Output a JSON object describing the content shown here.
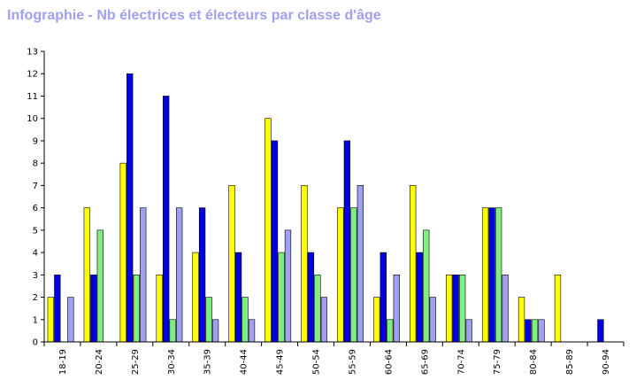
{
  "title": "Infographie - Nb électrices et électeurs par classe d'âge",
  "colors": {
    "title": "#a0a0f0",
    "axis": "#000000",
    "bar_outline": "#000000",
    "series": [
      "#ffff00",
      "#0000e0",
      "#80ee80",
      "#a0a0f0"
    ]
  },
  "chart_data": {
    "type": "bar",
    "title": "Infographie - Nb électrices et électeurs par classe d'âge",
    "xlabel": "",
    "ylabel": "",
    "ylim": [
      0,
      13
    ],
    "yticks": [
      0,
      1,
      2,
      3,
      4,
      5,
      6,
      7,
      8,
      9,
      10,
      11,
      12,
      13
    ],
    "grid": false,
    "legend": "none",
    "categories": [
      "18-19",
      "20-24",
      "25-29",
      "30-34",
      "35-39",
      "40-44",
      "45-49",
      "50-54",
      "55-59",
      "60-64",
      "65-69",
      "70-74",
      "75-79",
      "80-84",
      "85-89",
      "90-94"
    ],
    "series": [
      {
        "values": [
          2,
          6,
          8,
          3,
          4,
          7,
          10,
          7,
          6,
          2,
          7,
          3,
          6,
          2,
          3,
          0
        ]
      },
      {
        "values": [
          3,
          3,
          12,
          11,
          6,
          4,
          9,
          4,
          9,
          4,
          4,
          3,
          6,
          1,
          0,
          1
        ]
      },
      {
        "values": [
          0,
          5,
          3,
          1,
          2,
          2,
          4,
          3,
          6,
          1,
          5,
          3,
          6,
          1,
          0,
          0
        ]
      },
      {
        "values": [
          2,
          0,
          6,
          6,
          1,
          1,
          5,
          2,
          7,
          3,
          2,
          1,
          3,
          1,
          0,
          0
        ]
      }
    ]
  }
}
